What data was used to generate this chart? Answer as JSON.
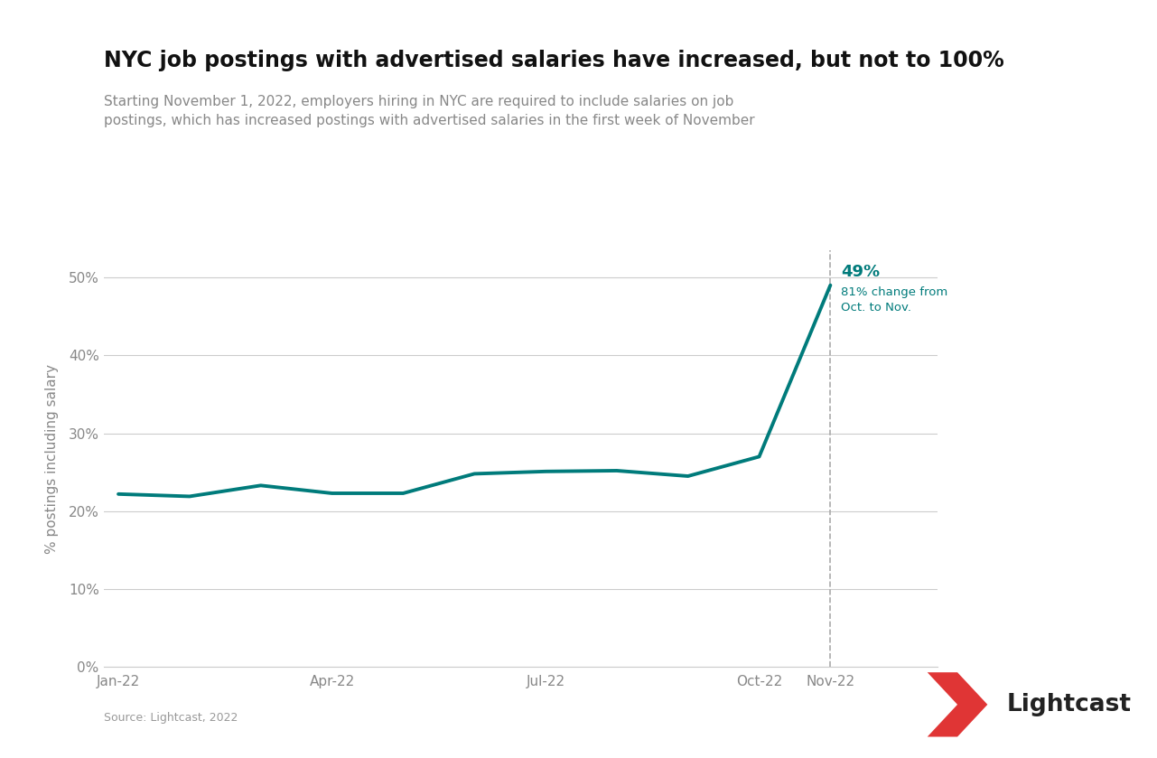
{
  "title": "NYC job postings with advertised salaries have increased, but not to 100%",
  "subtitle": "Starting November 1, 2022, employers hiring in NYC are required to include salaries on job\npostings, which has increased postings with advertised salaries in the first week of November",
  "ylabel": "% postings including salary",
  "source": "Source: Lightcast, 2022",
  "line_color": "#007b7b",
  "annotation_color": "#007b7b",
  "background_color": "#ffffff",
  "grid_color": "#cccccc",
  "x_tick_labels": [
    "Jan-22",
    "Apr-22",
    "Jul-22",
    "Oct-22",
    "Nov-22"
  ],
  "x_tick_positions": [
    0,
    3,
    6,
    9,
    10
  ],
  "data_x": [
    0,
    1,
    2,
    3,
    4,
    5,
    6,
    7,
    8,
    9,
    10
  ],
  "data_y": [
    0.222,
    0.219,
    0.233,
    0.223,
    0.223,
    0.248,
    0.251,
    0.252,
    0.245,
    0.27,
    0.49
  ],
  "yticks": [
    0.0,
    0.1,
    0.2,
    0.3,
    0.4,
    0.5
  ],
  "ylim": [
    0.0,
    0.535
  ],
  "xlim": [
    -0.2,
    11.5
  ],
  "annotation_label": "49%",
  "annotation_sub": "81% change from\nOct. to Nov.",
  "vline_x": 10,
  "line_width": 2.8,
  "title_fontsize": 17,
  "subtitle_fontsize": 11,
  "tick_fontsize": 11,
  "ylabel_fontsize": 11
}
